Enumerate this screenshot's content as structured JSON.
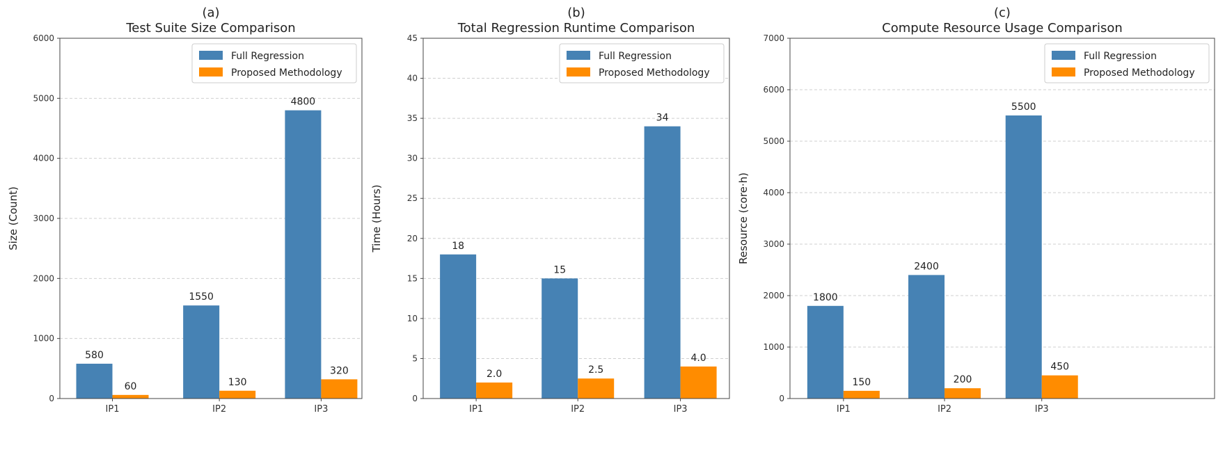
{
  "chart_data": [
    {
      "type": "bar",
      "panel_label": "(a)",
      "title": "Test Suite Size Comparison",
      "xlabel": "",
      "ylabel": "Size (Count)",
      "ylim": [
        0,
        6000
      ],
      "yticks": [
        0,
        1000,
        2000,
        3000,
        4000,
        5000,
        6000
      ],
      "categories": [
        "IP1",
        "IP2",
        "IP3"
      ],
      "series": [
        {
          "name": "Full Regression",
          "values": [
            580,
            1550,
            4800
          ],
          "labels": [
            "580",
            "1550",
            "4800"
          ],
          "color": "#4682b4"
        },
        {
          "name": "Proposed Methodology",
          "values": [
            60,
            130,
            320
          ],
          "labels": [
            "60",
            "130",
            "320"
          ],
          "color": "#ff8c00"
        }
      ],
      "grid": "horizontal-dashed",
      "legend": "top-right"
    },
    {
      "type": "bar",
      "panel_label": "(b)",
      "title": "Total Regression Runtime Comparison",
      "xlabel": "",
      "ylabel": "Time (Hours)",
      "ylim": [
        0,
        45
      ],
      "yticks": [
        0,
        5,
        10,
        15,
        20,
        25,
        30,
        35,
        40,
        45
      ],
      "categories": [
        "IP1",
        "IP2",
        "IP3"
      ],
      "series": [
        {
          "name": "Full Regression",
          "values": [
            18,
            15,
            34
          ],
          "labels": [
            "18",
            "15",
            "34"
          ],
          "color": "#4682b4"
        },
        {
          "name": "Proposed Methodology",
          "values": [
            2.0,
            2.5,
            4.0
          ],
          "labels": [
            "2.0",
            "2.5",
            "4.0"
          ],
          "color": "#ff8c00"
        }
      ],
      "grid": "horizontal-dashed",
      "legend": "top-right"
    },
    {
      "type": "bar",
      "panel_label": "(c)",
      "title": "Compute Resource Usage Comparison",
      "xlabel": "",
      "ylabel": "Resource (core·h)",
      "ylim": [
        0,
        7000
      ],
      "yticks": [
        0,
        1000,
        2000,
        3000,
        4000,
        5000,
        6000,
        7000
      ],
      "categories": [
        "IP1",
        "IP2",
        "IP3"
      ],
      "series": [
        {
          "name": "Full Regression",
          "values": [
            1800,
            2400,
            5500
          ],
          "labels": [
            "1800",
            "2400",
            "5500"
          ],
          "color": "#4682b4"
        },
        {
          "name": "Proposed Methodology",
          "values": [
            150,
            200,
            450
          ],
          "labels": [
            "150",
            "200",
            "450"
          ],
          "color": "#ff8c00"
        }
      ],
      "grid": "horizontal-dashed",
      "legend": "top-right"
    }
  ]
}
